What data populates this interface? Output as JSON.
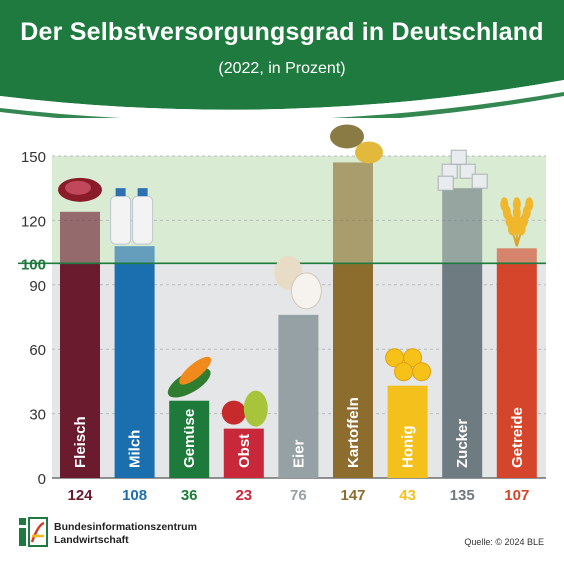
{
  "title": "Der Selbstversorgungsgrad in Deutschland",
  "subtitle": "(2022, in Prozent)",
  "chart_data": {
    "type": "bar",
    "categories": [
      "Fleisch",
      "Milch",
      "Gemüse",
      "Obst",
      "Eier",
      "Kartoffeln",
      "Honig",
      "Zucker",
      "Getreide"
    ],
    "values": [
      124,
      108,
      36,
      23,
      76,
      147,
      43,
      135,
      107
    ],
    "value_labels": [
      "124",
      "108",
      "36",
      "23",
      "76",
      "147",
      "43",
      "135",
      "107"
    ],
    "ylim": [
      0,
      150
    ],
    "y_ticks": [
      "0",
      "30",
      "60",
      "90",
      "100",
      "120",
      "150"
    ],
    "reference_line": {
      "value": 100,
      "label": "100"
    },
    "colors": [
      "#6b1b2e",
      "#1b6fae",
      "#1d7a3a",
      "#c8283a",
      "#95a1a5",
      "#8c6d2e",
      "#f3c01c",
      "#6e7b81",
      "#d4452b"
    ],
    "label_colors": [
      "#6b1b2e",
      "#1b6fae",
      "#1d7a3a",
      "#c8283a",
      "#95a1a5",
      "#8c6d2e",
      "#f3c01c",
      "#6e7b81",
      "#d4452b"
    ],
    "grid": true
  },
  "footer": {
    "org_line1": "Bundesinformationszentrum",
    "org_line2": "Landwirtschaft",
    "source": "Quelle: © 2024 BLE"
  },
  "theme": {
    "header_green": "#1e7a3e",
    "above_100_band": "#d9ebd3",
    "below_100_band": "#e4e6e7"
  }
}
